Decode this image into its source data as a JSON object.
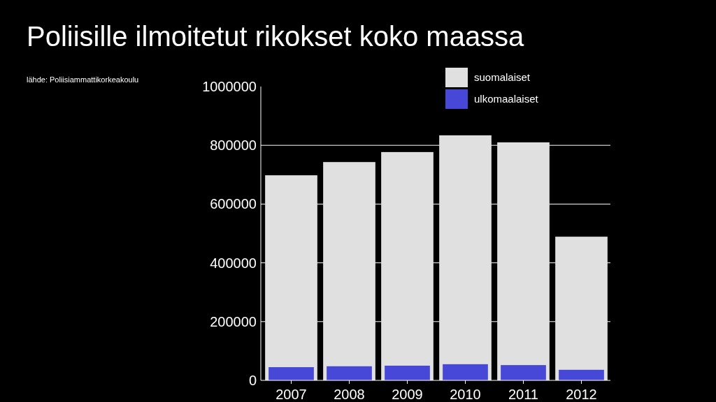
{
  "chart_data": {
    "type": "bar",
    "title": "Poliisille ilmoitetut rikokset koko maassa",
    "annotations": [
      "lähde: Poliisiammattikorkeakoulu"
    ],
    "categories": [
      "2007",
      "2008",
      "2009",
      "2010",
      "2011",
      "2012"
    ],
    "series": [
      {
        "name": "suomalaiset",
        "color": "#e0e0e0",
        "values": [
          698000,
          743000,
          777000,
          834000,
          810000,
          489000
        ]
      },
      {
        "name": "ulkomaalaiset",
        "color": "#4848d8",
        "values": [
          45000,
          48000,
          50000,
          55000,
          52000,
          36000
        ]
      }
    ],
    "ylim": [
      0,
      1000000
    ],
    "yticks": [
      0,
      200000,
      400000,
      600000,
      800000,
      1000000
    ],
    "grid": "y",
    "legend": "top"
  }
}
